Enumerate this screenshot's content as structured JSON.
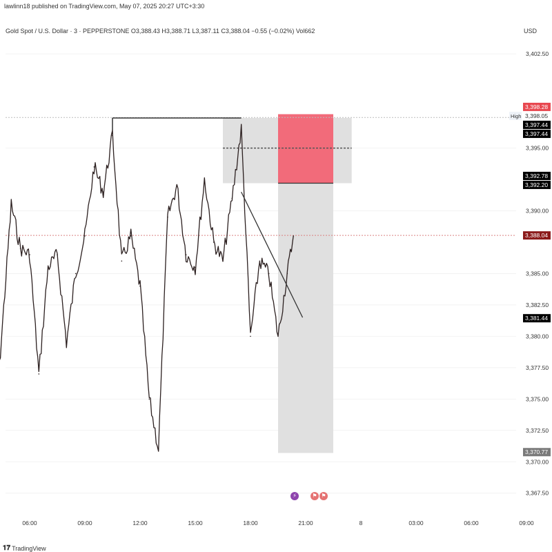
{
  "header": {
    "publisher": "lawlinn18 published on TradingView.com, May 07, 2025 20:27 UTC+3:30"
  },
  "symbol_line": "Gold Spot / U.S. Dollar · 3 · PEPPERSTONE  O3,388.43  H3,388.71  L3,387.11  C3,388.04  −0.55 (−0.02%)  Vol662",
  "currency": "USD",
  "footer": {
    "logo_text": "TradingView"
  },
  "colors": {
    "candle": "#2b1f1f",
    "stop_zone": "#f26b7a",
    "range_zone": "#e0e0e0",
    "axis_text": "#333333",
    "current_price_bg": "#8b1a1a",
    "black_label_bg": "#000000",
    "red_label_bg": "#e8474f",
    "gray_label_bg": "#7a7a7a"
  },
  "events": [
    {
      "icon": "lightning-icon",
      "color": "#8e44ad"
    },
    {
      "icon": "flag-icon",
      "color": "#e57373"
    },
    {
      "icon": "flag-icon",
      "color": "#e57373"
    }
  ],
  "chart_data": {
    "type": "line",
    "title": "Gold Spot / U.S. Dollar · 3 · PEPPERSTONE",
    "xlabel": "",
    "ylabel": "",
    "ylim": [
      3366.0,
      3403.5
    ],
    "x_ticks": [
      "06:00",
      "09:00",
      "12:00",
      "15:00",
      "18:00",
      "21:00",
      "8",
      "03:00",
      "06:00",
      "09:00"
    ],
    "y_ticks": [
      3367.5,
      3370.0,
      3372.5,
      3375.0,
      3377.5,
      3380.0,
      3382.5,
      3385.0,
      3390.0,
      3395.0,
      3402.5
    ],
    "y_tick_labels": [
      "3,367.50",
      "3,370.00",
      "3,372.50",
      "3,375.00",
      "3,377.50",
      "3,380.00",
      "3,382.50",
      "3,385.00",
      "3,390.00",
      "3,395.00",
      "3,402.50"
    ],
    "series": [
      {
        "x": [
          "04:00",
          "05:00",
          "05:30",
          "06:00",
          "06:30",
          "07:00",
          "07:30",
          "08:00",
          "08:30",
          "09:00",
          "09:30",
          "10:00",
          "10:30",
          "11:00",
          "11:30",
          "12:00",
          "12:30",
          "13:00",
          "13:30",
          "14:00",
          "14:30",
          "15:00",
          "15:30",
          "16:00",
          "16:30",
          "17:00",
          "17:30",
          "18:00",
          "18:30",
          "19:00",
          "19:30",
          "20:00",
          "20:20"
        ],
        "values": [
          3370.5,
          3390.5,
          3387.0,
          3386.5,
          3377.0,
          3385.5,
          3386.5,
          3379.5,
          3385.0,
          3388.0,
          3393.5,
          3391.5,
          3396.0,
          3386.0,
          3388.0,
          3384.0,
          3375.0,
          3371.0,
          3389.5,
          3392.0,
          3386.5,
          3385.5,
          3392.5,
          3387.5,
          3386.0,
          3391.0,
          3396.5,
          3380.0,
          3386.0,
          3385.0,
          3380.0,
          3385.0,
          3388.0
        ]
      }
    ],
    "price_labels": [
      {
        "value": 3398.28,
        "label": "3,398.28",
        "style": "red"
      },
      {
        "value": 3398.05,
        "label": "3,398.05",
        "style": "plain",
        "tag": "High"
      },
      {
        "value": 3397.44,
        "label": "3,397.44",
        "style": "black"
      },
      {
        "value": 3397.44,
        "label": "3,397.44",
        "style": "black"
      },
      {
        "value": 3392.78,
        "label": "3,392.78",
        "style": "black"
      },
      {
        "value": 3392.2,
        "label": "3,392.20",
        "style": "black"
      },
      {
        "value": 3388.04,
        "label": "3,388.04",
        "style": "current"
      },
      {
        "value": 3381.44,
        "label": "3,381.44",
        "style": "black"
      },
      {
        "value": 3370.77,
        "label": "3,370.77",
        "style": "gray"
      }
    ],
    "drawings": {
      "range_box": {
        "x0": "16:30",
        "x1": "23:30",
        "y0": 3392.2,
        "y1": 3397.4
      },
      "stop_zone": {
        "x0": "19:30",
        "x1": "22:30",
        "y0": 3392.2,
        "y1": 3397.7
      },
      "target_zone": {
        "x0": "19:30",
        "x1": "22:30",
        "y0": 3370.7,
        "y1": 3392.2
      },
      "range_midline": {
        "x0": "16:30",
        "x1": "23:30",
        "y": 3395.0
      },
      "horizontal_segment": {
        "x0": "10:30",
        "x1": "17:30",
        "y": 3397.4
      },
      "trendline": {
        "x0": "17:30",
        "y0": 3391.5,
        "x1": "20:50",
        "y1": 3381.5
      },
      "current_price_line": 3388.04,
      "high_line": 3397.44
    }
  }
}
